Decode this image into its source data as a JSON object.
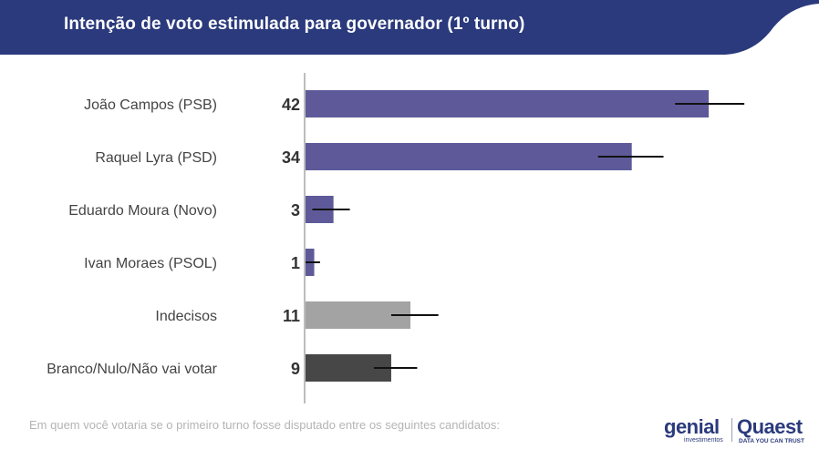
{
  "header": {
    "title": "Intenção de voto estimulada para governador (1º turno)",
    "color": "#2b3a7c"
  },
  "chart_data": {
    "type": "bar",
    "orientation": "horizontal",
    "title": "Intenção de voto estimulada para governador (1º turno)",
    "xlabel": "",
    "ylabel": "",
    "xlim": [
      0,
      50
    ],
    "grid": false,
    "error_bars": true,
    "categories": [
      "João Campos (PSB)",
      "Raquel Lyra (PSD)",
      "Eduardo Moura (Novo)",
      "Ivan Moraes (PSOL)",
      "Indecisos",
      "Branco/Nulo/Não vai votar"
    ],
    "values": [
      42,
      34,
      3,
      1,
      11,
      9
    ],
    "error_low": [
      38.5,
      30.5,
      0.8,
      0.1,
      9.0,
      7.2
    ],
    "error_high": [
      45.7,
      37.3,
      4.7,
      1.6,
      13.9,
      11.7
    ],
    "colors": [
      "#5e5a9a",
      "#5e5a9a",
      "#5e5a9a",
      "#5e5a9a",
      "#a3a3a3",
      "#474747"
    ]
  },
  "footnote": "Em quem você votaria se o primeiro turno fosse disputado entre os seguintes candidatos:",
  "logos": {
    "genial": "genial",
    "genial_sub": "investimentos",
    "quaest": "Quaest",
    "quaest_sub": "DATA YOU CAN TRUST"
  }
}
